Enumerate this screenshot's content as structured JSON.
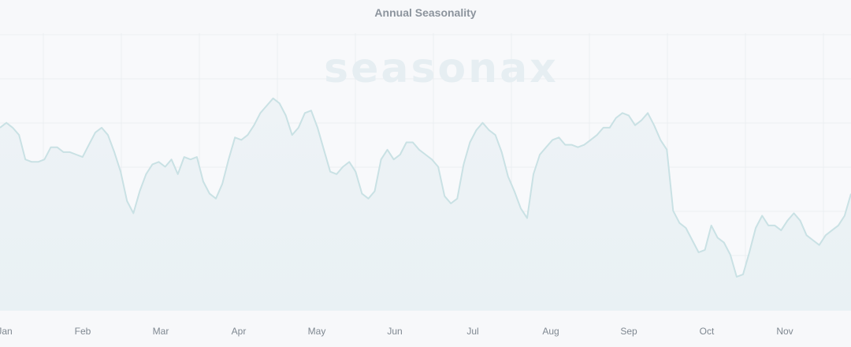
{
  "chart_data": {
    "type": "area",
    "title": "Annual Seasonality",
    "watermark": "seasonax",
    "x_labels": [
      "Jan",
      "Feb",
      "Mar",
      "Apr",
      "May",
      "Jun",
      "Jul",
      "Aug",
      "Sep",
      "Oct",
      "Nov"
    ],
    "x_range": [
      "Jan",
      "Nov"
    ],
    "y_axis_labels_shown": false,
    "grid": true,
    "legend": "none",
    "colors": {
      "line": "#c9e1e4",
      "fill_top": "#eef3f6",
      "fill_bottom": "#e9f1f4",
      "grid": "#ebeef1",
      "watermark": "#e6eef2",
      "background": "#f7f8fa"
    },
    "series": [
      {
        "values": [
          71,
          73,
          71,
          68,
          58,
          57,
          57,
          58,
          63,
          63,
          61,
          61,
          60,
          59,
          64,
          69,
          71,
          68,
          61,
          53,
          41,
          36,
          45,
          52,
          56,
          57,
          55,
          58,
          52,
          59,
          58,
          59,
          49,
          44,
          42,
          48,
          58,
          67,
          66,
          68,
          72,
          77,
          80,
          83,
          81,
          76,
          68,
          71,
          77,
          78,
          71,
          62,
          53,
          52,
          55,
          57,
          53,
          44,
          42,
          45,
          58,
          62,
          58,
          60,
          65,
          65,
          62,
          60,
          58,
          55,
          43,
          40,
          42,
          56,
          65,
          70,
          73,
          70,
          68,
          61,
          51,
          45,
          38,
          34,
          52,
          60,
          63,
          66,
          67,
          64,
          64,
          63,
          64,
          66,
          68,
          71,
          71,
          75,
          77,
          76,
          72,
          74,
          77,
          72,
          66,
          62,
          37,
          32,
          30,
          25,
          20,
          21,
          31,
          26,
          24,
          19,
          10,
          11,
          20,
          30,
          35,
          31,
          31,
          29,
          33,
          36,
          33,
          27,
          25,
          23,
          27,
          29,
          31,
          35,
          44
        ]
      }
    ]
  }
}
